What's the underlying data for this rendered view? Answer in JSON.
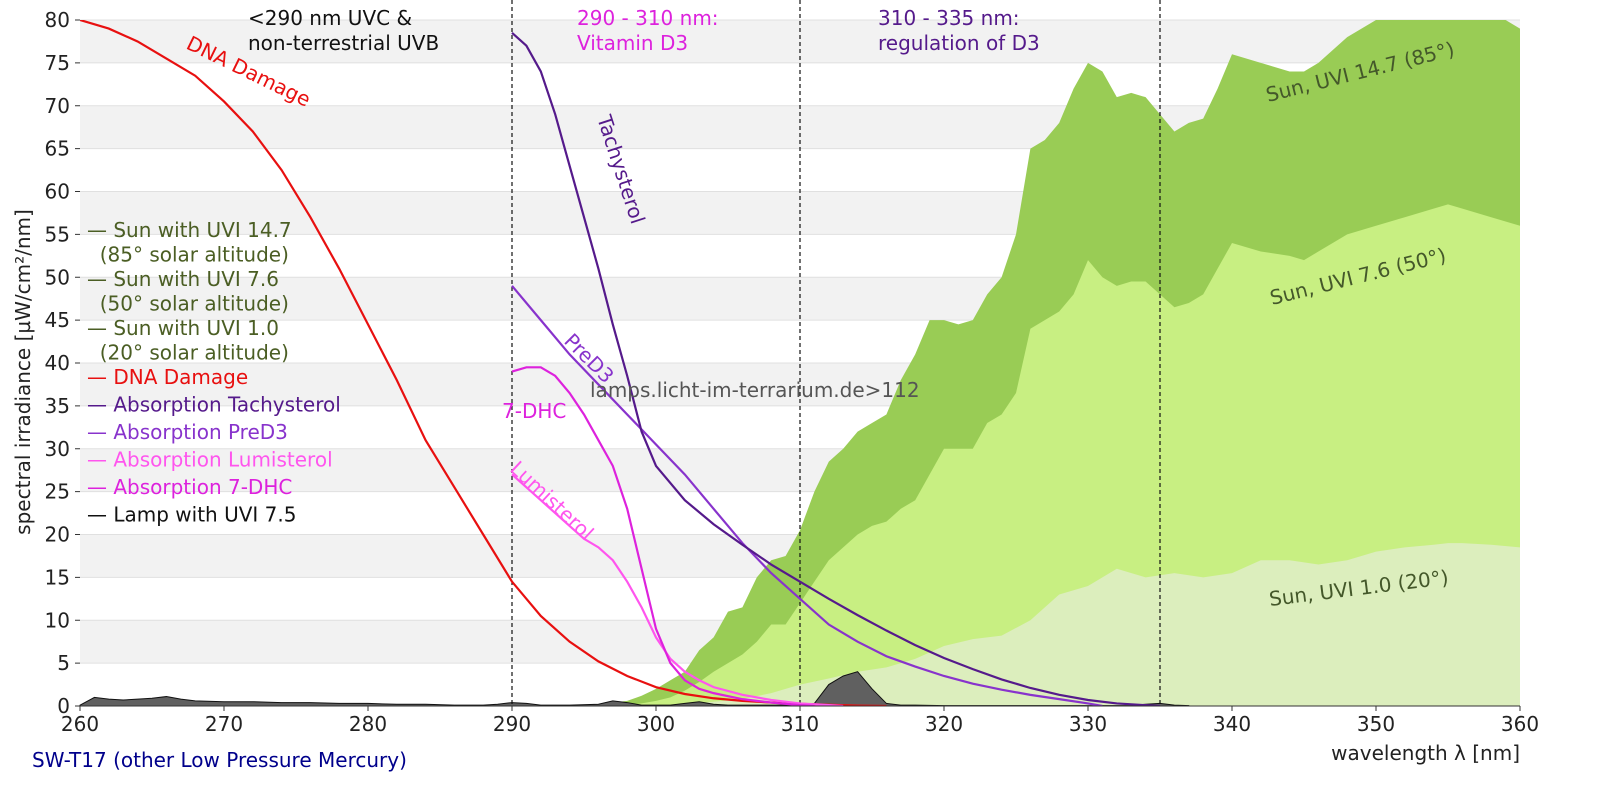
{
  "chart_data": {
    "type": "area",
    "xlabel": "wavelength λ [nm]",
    "ylabel": "spectral irradiance [µW/cm²/nm]",
    "xlim": [
      260,
      360
    ],
    "ylim": [
      0,
      80
    ],
    "xticks": [
      260,
      270,
      280,
      290,
      300,
      310,
      320,
      330,
      340,
      350,
      360
    ],
    "yticks": [
      0,
      5,
      10,
      15,
      20,
      25,
      30,
      35,
      40,
      45,
      50,
      55,
      60,
      65,
      70,
      75,
      80
    ],
    "grid": "alternating horizontal bands",
    "legend_position": "left",
    "colors": {
      "sun_uvi_14_7": "#99cc55",
      "sun_uvi_7_6": "#c8ef82",
      "sun_uvi_1_0": "#dceebd",
      "lamp": "#606060",
      "dna": "#e81010",
      "tachysterol": "#551a8b",
      "pred3": "#8833cc",
      "lumisterol": "#ff55ee",
      "dhc": "#dd22dd",
      "sun_label": "#44582a",
      "legend_sun": "#4b5e24",
      "footer": "#00008b"
    },
    "series": [
      {
        "name": "Sun with UVI 14.7",
        "key": "sun_uvi_14_7",
        "x": [
          296,
          298,
          299,
          300,
          301,
          302,
          303,
          304,
          305,
          306,
          307,
          308,
          309,
          310,
          311,
          312,
          313,
          314,
          315,
          316,
          317,
          318,
          319,
          320,
          321,
          322,
          323,
          324,
          325,
          326,
          327,
          328,
          329,
          330,
          331,
          332,
          333,
          334,
          335,
          336,
          337,
          338,
          339,
          340,
          342,
          344,
          345,
          346,
          348,
          350,
          352,
          354,
          355,
          356,
          358,
          360
        ],
        "values": [
          0.2,
          0.6,
          1.2,
          2.0,
          3.0,
          4.0,
          6.5,
          8.0,
          11.0,
          11.5,
          15.0,
          17.0,
          17.5,
          20.5,
          25.0,
          28.5,
          30.0,
          32.0,
          33.0,
          34.0,
          38.0,
          41.0,
          45.0,
          45.0,
          44.5,
          45.0,
          48.0,
          50.0,
          55.0,
          65.0,
          66.0,
          68.0,
          72.0,
          75.0,
          74.0,
          71.0,
          71.5,
          71.0,
          69.0,
          67.0,
          68.0,
          68.5,
          72.0,
          76.0,
          75.0,
          74.0,
          74.0,
          75.0,
          78.0,
          80.0,
          81.0,
          83.0,
          83.5,
          82.0,
          81.0,
          79.0
        ]
      },
      {
        "name": "Sun with UVI 7.6",
        "key": "sun_uvi_7_6",
        "x": [
          298,
          299,
          300,
          301,
          302,
          303,
          304,
          305,
          306,
          307,
          308,
          309,
          310,
          311,
          312,
          313,
          314,
          315,
          316,
          317,
          318,
          319,
          320,
          321,
          322,
          323,
          324,
          325,
          326,
          327,
          328,
          329,
          330,
          331,
          332,
          333,
          334,
          335,
          336,
          337,
          338,
          339,
          340,
          342,
          344,
          345,
          346,
          348,
          350,
          352,
          354,
          355,
          356,
          358,
          360
        ],
        "values": [
          0.1,
          0.3,
          0.6,
          1.0,
          1.8,
          2.8,
          4.0,
          5.0,
          6.0,
          7.5,
          9.5,
          9.5,
          12.0,
          14.5,
          17.0,
          18.5,
          20.0,
          21.0,
          21.5,
          23.0,
          24.0,
          27.0,
          30.0,
          30.0,
          30.0,
          33.0,
          34.0,
          36.5,
          44.0,
          45.0,
          46.0,
          48.0,
          52.0,
          50.0,
          49.0,
          49.5,
          49.5,
          48.0,
          46.5,
          47.0,
          48.0,
          51.0,
          54.0,
          53.0,
          52.5,
          52.0,
          53.0,
          55.0,
          56.0,
          57.0,
          58.0,
          58.5,
          58.0,
          57.0,
          56.0
        ]
      },
      {
        "name": "Sun with UVI 1.0",
        "key": "sun_uvi_1_0",
        "x": [
          300,
          302,
          304,
          306,
          308,
          310,
          312,
          314,
          316,
          318,
          320,
          322,
          324,
          326,
          328,
          330,
          332,
          334,
          336,
          338,
          340,
          342,
          344,
          346,
          348,
          350,
          352,
          354,
          355,
          356,
          358,
          360
        ],
        "values": [
          0.0,
          0.2,
          0.5,
          0.8,
          1.5,
          2.5,
          3.2,
          4.0,
          4.5,
          5.5,
          7.0,
          7.8,
          8.2,
          10.0,
          13.0,
          14.0,
          16.0,
          15.0,
          15.5,
          15.0,
          15.5,
          17.0,
          17.0,
          16.5,
          17.0,
          18.0,
          18.5,
          18.8,
          19.0,
          19.0,
          18.8,
          18.5
        ]
      },
      {
        "name": "Lamp with UVI 7.5",
        "key": "lamp",
        "x": [
          260,
          261,
          262,
          263,
          264,
          265,
          266,
          267,
          268,
          270,
          272,
          274,
          276,
          278,
          280,
          282,
          284,
          286,
          288,
          289,
          290,
          291,
          292,
          294,
          296,
          297,
          298,
          299,
          300,
          301,
          302,
          303,
          304,
          305,
          306,
          308,
          310,
          311,
          312,
          313,
          314,
          315,
          316,
          317,
          318,
          320,
          325,
          330,
          333,
          334,
          335,
          336,
          337
        ],
        "values": [
          0.1,
          1.0,
          0.8,
          0.7,
          0.8,
          0.9,
          1.1,
          0.8,
          0.6,
          0.5,
          0.5,
          0.4,
          0.4,
          0.3,
          0.3,
          0.2,
          0.2,
          0.1,
          0.1,
          0.2,
          0.4,
          0.3,
          0.1,
          0.1,
          0.2,
          0.6,
          0.4,
          0.1,
          0.1,
          0.1,
          0.3,
          0.5,
          0.2,
          0.1,
          0.1,
          0.1,
          0.1,
          0.3,
          2.5,
          3.5,
          4.0,
          2.0,
          0.3,
          0.1,
          0.1,
          0.05,
          0.05,
          0.05,
          0.05,
          0.2,
          0.3,
          0.1,
          0.05
        ]
      },
      {
        "name": "DNA Damage",
        "key": "dna",
        "x": [
          260,
          262,
          264,
          266,
          268,
          270,
          272,
          274,
          276,
          278,
          280,
          282,
          284,
          286,
          288,
          290,
          292,
          294,
          296,
          298,
          300,
          302,
          304,
          306,
          308,
          310,
          312,
          314,
          316
        ],
        "values": [
          80,
          79,
          77.5,
          75.5,
          73.5,
          70.5,
          67,
          62.5,
          57,
          51,
          44.5,
          38,
          31,
          25.5,
          20,
          14.5,
          10.5,
          7.5,
          5.2,
          3.5,
          2.2,
          1.4,
          0.9,
          0.6,
          0.4,
          0.25,
          0.15,
          0.05,
          0.0
        ]
      },
      {
        "name": "Absorption Tachysterol",
        "key": "tachysterol",
        "x": [
          290,
          291,
          292,
          293,
          294,
          295,
          296,
          297,
          298,
          299,
          300,
          302,
          304,
          306,
          308,
          310,
          312,
          314,
          316,
          318,
          320,
          322,
          324,
          326,
          328,
          330,
          332,
          334,
          335
        ],
        "values": [
          78.5,
          77,
          74,
          69,
          63,
          57,
          51,
          44.5,
          38.5,
          32,
          28,
          24,
          21.2,
          18.8,
          16.5,
          14.5,
          12.5,
          10.6,
          8.8,
          7.1,
          5.6,
          4.3,
          3.1,
          2.1,
          1.3,
          0.7,
          0.3,
          0.1,
          0.0
        ]
      },
      {
        "name": "Absorption PreD3",
        "key": "pred3",
        "x": [
          290,
          292,
          294,
          296,
          298,
          300,
          302,
          304,
          306,
          308,
          310,
          312,
          314,
          316,
          318,
          320,
          322,
          324,
          326,
          328,
          330,
          331
        ],
        "values": [
          49,
          45,
          41,
          37.5,
          34,
          30.5,
          27,
          23,
          19,
          15.5,
          12.5,
          9.5,
          7.5,
          5.8,
          4.6,
          3.5,
          2.6,
          1.9,
          1.3,
          0.8,
          0.3,
          0.0
        ]
      },
      {
        "name": "Absorption Lumisterol",
        "key": "lumisterol",
        "x": [
          290,
          291,
          292,
          293,
          294,
          295,
          296,
          297,
          298,
          299,
          300,
          301,
          302,
          303,
          304,
          306,
          308,
          310,
          312,
          313
        ],
        "values": [
          27,
          25.5,
          24,
          22.5,
          21,
          19.5,
          18.5,
          17,
          14.5,
          11.5,
          8,
          5.5,
          4,
          3,
          2.2,
          1.3,
          0.7,
          0.3,
          0.1,
          0.0
        ]
      },
      {
        "name": "Absorption 7-DHC",
        "key": "dhc",
        "x": [
          290,
          291,
          292,
          293,
          294,
          295,
          296,
          297,
          298,
          299,
          300,
          301,
          302,
          303,
          304,
          306,
          308,
          310,
          311
        ],
        "values": [
          39,
          39.5,
          39.5,
          38.5,
          36.5,
          34,
          31,
          28,
          23,
          16,
          9,
          5,
          3,
          2,
          1.5,
          0.8,
          0.4,
          0.1,
          0.0
        ]
      }
    ],
    "vlines": [
      290,
      310,
      335
    ],
    "region_labels": [
      {
        "lines": [
          "<290 nm UVC &",
          "non-terrestrial UVB"
        ],
        "color": "#111111"
      },
      {
        "lines": [
          "290 - 310 nm:",
          "Vitamin D3"
        ],
        "color": "#dd22dd"
      },
      {
        "lines": [
          "310 - 335 nm:",
          "regulation of D3"
        ],
        "color": "#551a8b"
      }
    ],
    "curve_labels": [
      {
        "text": "DNA Damage",
        "key": "dna"
      },
      {
        "text": "Tachysterol",
        "key": "tachysterol"
      },
      {
        "text": "PreD3",
        "key": "pred3"
      },
      {
        "text": "7-DHC",
        "key": "dhc"
      },
      {
        "text": "Lumisterol",
        "key": "lumisterol"
      },
      {
        "text": "Sun, UVI 14.7 (85°)",
        "key": "sun_label"
      },
      {
        "text": "Sun, UVI 7.6 (50°)",
        "key": "sun_label"
      },
      {
        "text": "Sun, UVI 1.0 (20°)",
        "key": "sun_label"
      }
    ],
    "legend": [
      {
        "lines": [
          "— Sun with UVI 14.7",
          "  (85° solar altitude)"
        ],
        "key": "legend_sun"
      },
      {
        "lines": [
          "— Sun with UVI 7.6",
          "  (50° solar altitude)"
        ],
        "key": "legend_sun"
      },
      {
        "lines": [
          "— Sun with UVI 1.0",
          "  (20° solar altitude)"
        ],
        "key": "legend_sun"
      },
      {
        "lines": [
          "— DNA Damage"
        ],
        "key": "dna"
      },
      {
        "lines": [
          "— Absorption Tachysterol"
        ],
        "key": "tachysterol"
      },
      {
        "lines": [
          "— Absorption PreD3"
        ],
        "key": "pred3"
      },
      {
        "lines": [
          "— Absorption Lumisterol"
        ],
        "key": "lumisterol"
      },
      {
        "lines": [
          "— Absorption 7-DHC"
        ],
        "key": "dhc"
      },
      {
        "lines": [
          "— Lamp with UVI 7.5"
        ],
        "key": "black"
      }
    ],
    "watermark": "lamps.licht-im-terrarium.de>112",
    "footer": "SW-T17 (other Low Pressure Mercury)"
  }
}
